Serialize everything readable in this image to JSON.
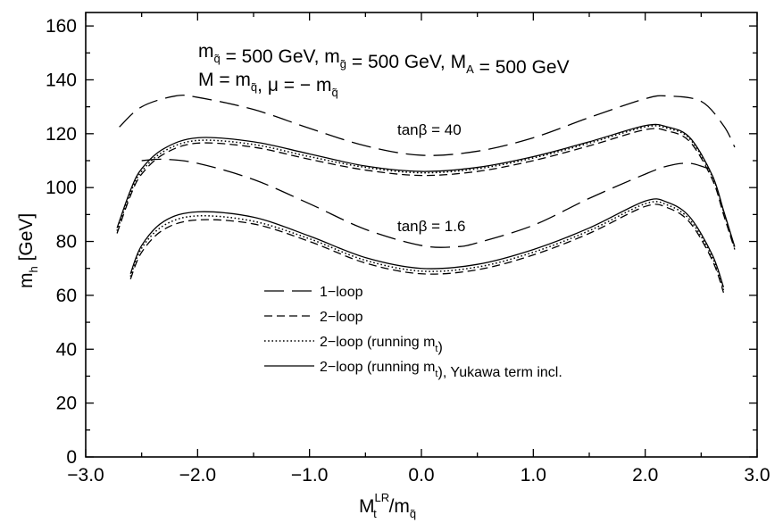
{
  "chart_data": {
    "type": "line",
    "header_lines": [
      [
        "m",
        {
          "sub": "q̃"
        },
        " = 500 GeV, m",
        {
          "sub": "g̃"
        },
        " = 500 GeV, M",
        {
          "sub": "A"
        },
        " = 500 GeV"
      ],
      [
        "M = m",
        {
          "sub": "q̃"
        },
        ", μ = − m",
        {
          "sub": "q̃"
        }
      ]
    ],
    "annotations": [
      "tanβ = 40",
      "tanβ = 1.6"
    ],
    "xlabel": {
      "main": "M",
      "sub": "t",
      "sup": "LR",
      "after": " /m",
      "after_sub": "q̃"
    },
    "ylabel": {
      "main": "m",
      "sub": "h",
      "after": " [GeV]"
    },
    "xlim": [
      -3.0,
      3.0
    ],
    "ylim": [
      0,
      165
    ],
    "x_ticks": [
      -3.0,
      -2.0,
      -1.0,
      0.0,
      1.0,
      2.0,
      3.0
    ],
    "x_tick_labels": [
      "−3.0",
      "−2.0",
      "−1.0",
      "0.0",
      "1.0",
      "2.0",
      "3.0"
    ],
    "y_ticks": [
      0,
      20,
      40,
      60,
      80,
      100,
      120,
      140,
      160
    ],
    "y_tick_labels": [
      "0",
      "20",
      "40",
      "60",
      "80",
      "100",
      "120",
      "140",
      "160"
    ],
    "grid": false,
    "legend_position": "lower-left",
    "legend": [
      {
        "text": [
          "1−loop"
        ],
        "style": "long-dash"
      },
      {
        "text": [
          "2−loop"
        ],
        "style": "dash"
      },
      {
        "text": [
          "2−loop (running m",
          {
            "sub": "t"
          },
          ")"
        ],
        "style": "dot"
      },
      {
        "text": [
          "2−loop (running m",
          {
            "sub": "t"
          },
          "), Yukawa term incl."
        ],
        "style": "solid"
      }
    ],
    "series": [
      {
        "group": "tanβ = 40",
        "style": "long-dash",
        "x": [
          -2.7,
          -2.5,
          -2.2,
          -2.0,
          -1.5,
          -1.0,
          -0.5,
          0.0,
          0.5,
          1.0,
          1.5,
          2.0,
          2.2,
          2.5,
          2.7,
          2.8
        ],
        "y": [
          122.5,
          130,
          134,
          133.5,
          129,
          122,
          115.5,
          112,
          113.5,
          118.5,
          126,
          133,
          134,
          132,
          123,
          115
        ]
      },
      {
        "group": "tanβ = 40",
        "style": "dash",
        "x": [
          -2.72,
          -2.6,
          -2.5,
          -2.3,
          -2.0,
          -1.5,
          -1.0,
          -0.5,
          0.0,
          0.5,
          1.0,
          1.5,
          2.0,
          2.2,
          2.4,
          2.6,
          2.7,
          2.8
        ],
        "y": [
          83,
          97,
          105,
          112.5,
          116.5,
          115,
          110.5,
          106.5,
          104.5,
          106,
          110,
          115.5,
          121.5,
          121,
          117,
          103,
          90,
          77
        ]
      },
      {
        "group": "tanβ = 40",
        "style": "dot",
        "x": [
          -2.72,
          -2.6,
          -2.5,
          -2.3,
          -2.0,
          -1.5,
          -1.0,
          -0.5,
          0.0,
          0.5,
          1.0,
          1.5,
          2.0,
          2.2,
          2.4,
          2.6,
          2.7,
          2.8
        ],
        "y": [
          84,
          98,
          106,
          113.5,
          117.5,
          116,
          111.5,
          107.5,
          105.5,
          107,
          111,
          116.5,
          122.5,
          122,
          118,
          104,
          91,
          77.5
        ]
      },
      {
        "group": "tanβ = 40",
        "style": "solid",
        "x": [
          -2.72,
          -2.6,
          -2.5,
          -2.3,
          -2.0,
          -1.5,
          -1.0,
          -0.5,
          0.0,
          0.5,
          1.0,
          1.5,
          2.0,
          2.2,
          2.4,
          2.6,
          2.7,
          2.8
        ],
        "y": [
          85,
          99,
          107,
          114.5,
          118.5,
          117,
          112.5,
          108,
          106,
          107.5,
          111.5,
          117,
          123,
          122.5,
          118.5,
          104.5,
          91.5,
          78
        ]
      },
      {
        "group": "tanβ = 1.6",
        "style": "long-dash",
        "x": [
          -2.5,
          -2.3,
          -2.0,
          -1.5,
          -1.0,
          -0.5,
          0.0,
          0.3,
          0.5,
          1.0,
          1.5,
          2.0,
          2.2,
          2.4,
          2.6
        ],
        "y": [
          110,
          110.5,
          109,
          103,
          94,
          84.5,
          78.5,
          78,
          79.5,
          86,
          96,
          105,
          108,
          109,
          106.5
        ]
      },
      {
        "group": "tanβ = 1.6",
        "style": "dash",
        "x": [
          -2.6,
          -2.5,
          -2.3,
          -2.0,
          -1.5,
          -1.0,
          -0.5,
          0.0,
          0.5,
          1.0,
          1.5,
          2.0,
          2.2,
          2.4,
          2.6,
          2.7
        ],
        "y": [
          66,
          76,
          84.5,
          88,
          86.5,
          80,
          72,
          68,
          69.5,
          75,
          83,
          93,
          92.5,
          87,
          73,
          61
        ]
      },
      {
        "group": "tanβ = 1.6",
        "style": "dot",
        "x": [
          -2.6,
          -2.5,
          -2.3,
          -2.0,
          -1.5,
          -1.0,
          -0.5,
          0.0,
          0.5,
          1.0,
          1.5,
          2.0,
          2.2,
          2.4,
          2.6,
          2.7
        ],
        "y": [
          67,
          77.5,
          86,
          89.5,
          87.5,
          81,
          73,
          69,
          70.5,
          76,
          84,
          94,
          93.5,
          88,
          74,
          62
        ]
      },
      {
        "group": "tanβ = 1.6",
        "style": "solid",
        "x": [
          -2.6,
          -2.5,
          -2.3,
          -2.0,
          -1.5,
          -1.0,
          -0.5,
          0.0,
          0.5,
          1.0,
          1.5,
          2.0,
          2.2,
          2.4,
          2.6,
          2.7
        ],
        "y": [
          68,
          78.5,
          87.5,
          91,
          89,
          82,
          74,
          70,
          71.5,
          77,
          85,
          95,
          94.5,
          89,
          75,
          63
        ]
      }
    ]
  }
}
